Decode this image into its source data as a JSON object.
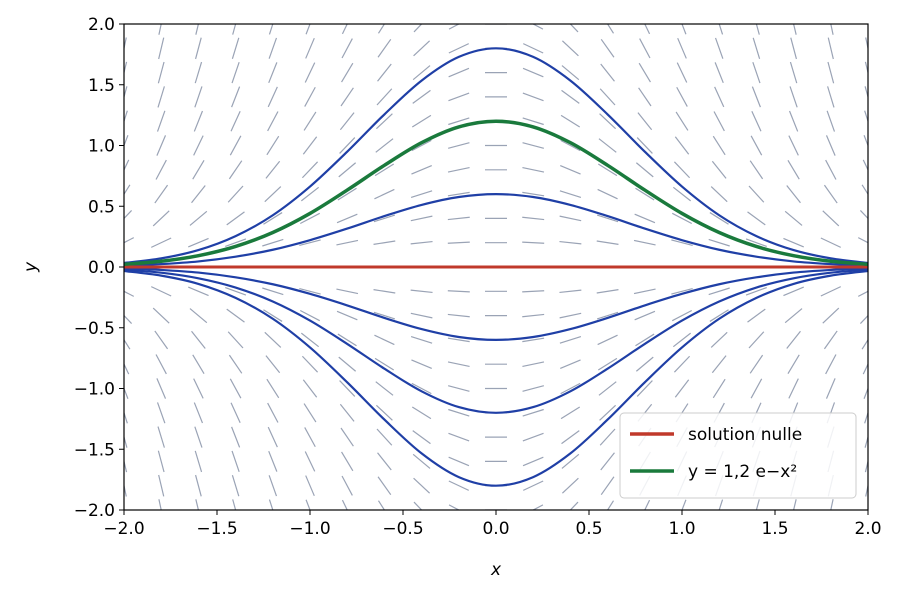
{
  "chart_data": {
    "type": "line",
    "xlabel": "x",
    "ylabel": "y",
    "x": [
      -2,
      -1.8,
      -1.6,
      -1.4,
      -1.2,
      -1,
      -0.8,
      -0.6,
      -0.4,
      -0.2,
      0,
      0.2,
      0.4,
      0.6,
      0.8,
      1,
      1.2,
      1.4,
      1.6,
      1.8,
      2
    ],
    "series": [
      {
        "color": "#1f3fa6",
        "values": [
          0.033,
          0.071,
          0.139,
          0.254,
          0.426,
          0.662,
          0.949,
          1.256,
          1.534,
          1.729,
          1.8,
          1.729,
          1.534,
          1.256,
          0.949,
          0.662,
          0.426,
          0.254,
          0.139,
          0.071,
          0.033
        ]
      },
      {
        "color": "#1f3fa6",
        "values": [
          0.011,
          0.024,
          0.046,
          0.085,
          0.142,
          0.221,
          0.316,
          0.419,
          0.511,
          0.576,
          0.6,
          0.576,
          0.511,
          0.419,
          0.316,
          0.221,
          0.142,
          0.085,
          0.046,
          0.024,
          0.011
        ]
      },
      {
        "color": "#1f3fa6",
        "values": [
          -0.011,
          -0.024,
          -0.046,
          -0.085,
          -0.142,
          -0.221,
          -0.316,
          -0.419,
          -0.511,
          -0.576,
          -0.6,
          -0.576,
          -0.511,
          -0.419,
          -0.316,
          -0.221,
          -0.142,
          -0.085,
          -0.046,
          -0.024,
          -0.011
        ]
      },
      {
        "color": "#1f3fa6",
        "values": [
          -0.022,
          -0.047,
          -0.093,
          -0.169,
          -0.284,
          -0.441,
          -0.633,
          -0.837,
          -1.023,
          -1.153,
          -1.2,
          -1.153,
          -1.023,
          -0.837,
          -0.633,
          -0.441,
          -0.284,
          -0.169,
          -0.093,
          -0.047,
          -0.022
        ]
      },
      {
        "color": "#1f3fa6",
        "values": [
          -0.033,
          -0.071,
          -0.139,
          -0.254,
          -0.426,
          -0.662,
          -0.949,
          -1.256,
          -1.534,
          -1.729,
          -1.8,
          -1.729,
          -1.534,
          -1.256,
          -0.949,
          -0.662,
          -0.426,
          -0.254,
          -0.139,
          -0.071,
          -0.033
        ]
      },
      {
        "name": "solution nulle",
        "color": "#c0392b",
        "width": 3,
        "values": [
          0,
          0,
          0,
          0,
          0,
          0,
          0,
          0,
          0,
          0,
          0,
          0,
          0,
          0,
          0,
          0,
          0,
          0,
          0,
          0,
          0
        ]
      },
      {
        "name": "y = 1,2 e−x²",
        "color": "#1a7a3c",
        "width": 3.5,
        "values": [
          0.022,
          0.047,
          0.093,
          0.169,
          0.284,
          0.441,
          0.633,
          0.837,
          1.023,
          1.153,
          1.2,
          1.153,
          1.023,
          0.837,
          0.633,
          0.441,
          0.284,
          0.169,
          0.093,
          0.047,
          0.022
        ]
      }
    ],
    "xlim": [
      -2,
      2
    ],
    "ylim": [
      -2,
      2
    ],
    "xticks": [
      {
        "value": -2,
        "label": "−2.0"
      },
      {
        "value": -1.5,
        "label": "−1.5"
      },
      {
        "value": -1,
        "label": "−1.0"
      },
      {
        "value": -0.5,
        "label": "−0.5"
      },
      {
        "value": 0,
        "label": "0.0"
      },
      0.5,
      {
        "value": 1,
        "label": "1.0"
      },
      1.5,
      {
        "value": 2,
        "label": "2.0"
      }
    ],
    "yticks": [
      {
        "value": -2,
        "label": "−2.0"
      },
      {
        "value": -1.5,
        "label": "−1.5"
      },
      {
        "value": -1,
        "label": "−1.0"
      },
      {
        "value": -0.5,
        "label": "−0.5"
      },
      {
        "value": 0,
        "label": "0.0"
      },
      0.5,
      {
        "value": 1,
        "label": "1.0"
      },
      1.5,
      {
        "value": 2,
        "label": "2.0"
      }
    ],
    "legend": "lower right"
  }
}
